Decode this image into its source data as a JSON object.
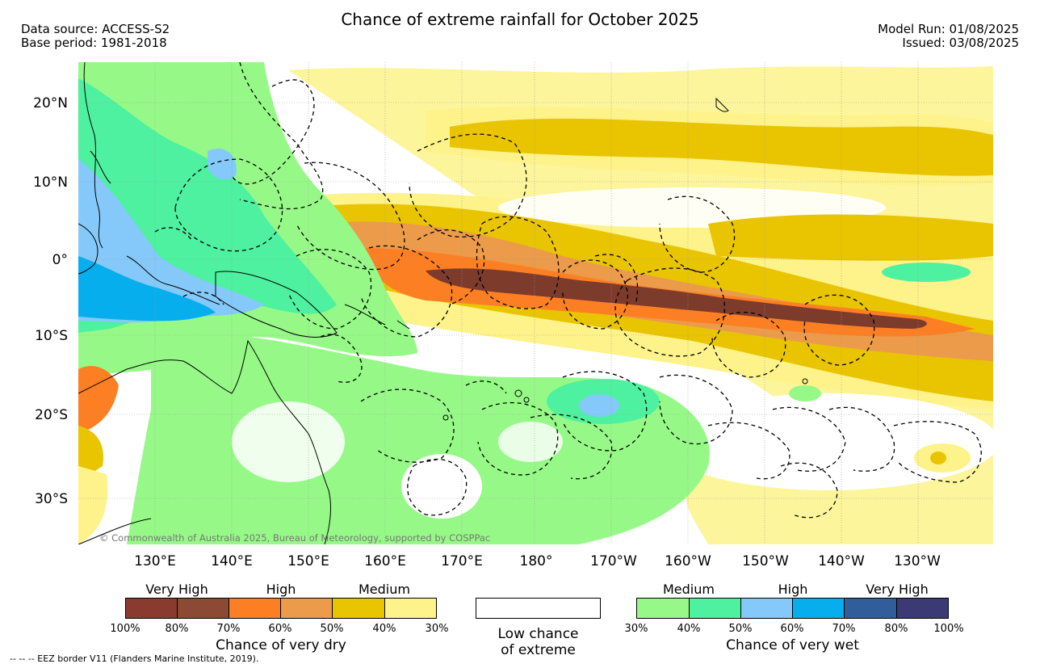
{
  "header": {
    "title": "Chance of extreme rainfall for October 2025",
    "data_source": "Data source: ACCESS-S2",
    "base_period": "Base period: 1981-2018",
    "model_run": "Model Run: 01/08/2025",
    "issued": "Issued: 03/08/2025"
  },
  "map": {
    "lat_labels": [
      "20°N",
      "10°N",
      "0°",
      "10°S",
      "20°S",
      "30°S"
    ],
    "lon_labels": [
      "130°E",
      "140°E",
      "150°E",
      "160°E",
      "170°E",
      "180°",
      "170°W",
      "160°W",
      "150°W",
      "140°W",
      "130°W"
    ],
    "credit": "© Commonwealth of Australia 2025, Bureau of Meteorology, supported by COSPPac"
  },
  "legend": {
    "dry": {
      "categories": [
        "Very High",
        "High",
        "Medium"
      ],
      "ticks": [
        "100%",
        "80%",
        "70%",
        "60%",
        "50%",
        "40%",
        "30%"
      ],
      "colors": [
        "#8b3a2f",
        "#8c4a35",
        "#fd7f23",
        "#eb9b4a",
        "#e9c400",
        "#fdf38a"
      ],
      "title": "Chance of very dry"
    },
    "low": {
      "line1": "Low chance",
      "line2": "of extreme"
    },
    "wet": {
      "categories": [
        "Medium",
        "High",
        "Very High"
      ],
      "ticks": [
        "30%",
        "40%",
        "50%",
        "60%",
        "70%",
        "80%",
        "100%"
      ],
      "colors": [
        "#96f987",
        "#4ef19f",
        "#84c9f9",
        "#06aeee",
        "#315d9b",
        "#3c3a74"
      ],
      "title": "Chance of very wet"
    }
  },
  "footer": {
    "eez_note": "--  --  -- EEZ border V11 (Flanders Marine Institute, 2019)."
  }
}
